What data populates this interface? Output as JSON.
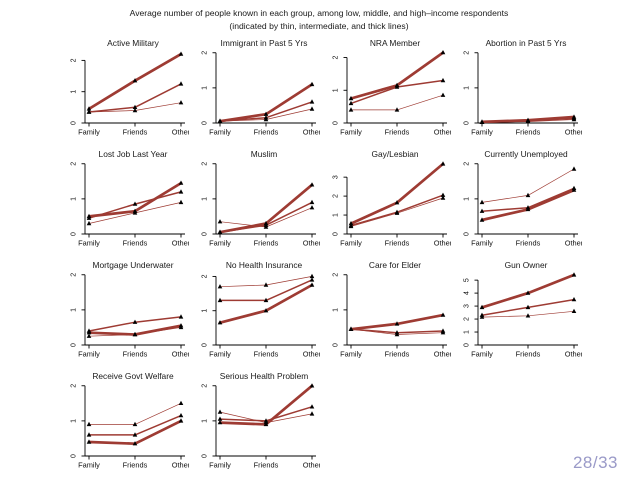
{
  "slide": {
    "title_line1": "Average number of people known in each group, among low, middle, and high–income respondents",
    "title_line2": "(indicated by thin, intermediate, and thick lines)",
    "page_number": "28/33"
  },
  "colors": {
    "line": "#9e3b33",
    "marker": "#000000",
    "axis": "#000000",
    "page_number": "#9a9ac8"
  },
  "legend_note": "thin = low income, intermediate = middle income, thick = high income",
  "chart_data": [
    {
      "type": "line",
      "title": "Active Military",
      "categories": [
        "Family",
        "Friends",
        "Other"
      ],
      "yticks": [
        0,
        1,
        2
      ],
      "ylim": [
        0,
        2.3
      ],
      "series": [
        {
          "name": "low income (thin)",
          "values": [
            0.35,
            0.4,
            0.65
          ]
        },
        {
          "name": "middle income (intermediate)",
          "values": [
            0.35,
            0.5,
            1.25
          ]
        },
        {
          "name": "high income (thick)",
          "values": [
            0.45,
            1.35,
            2.2
          ]
        }
      ]
    },
    {
      "type": "line",
      "title": "Immigrant in Past 5 Yrs",
      "categories": [
        "Family",
        "Friends",
        "Other"
      ],
      "yticks": [
        0,
        1,
        2
      ],
      "ylim": [
        0,
        2.05
      ],
      "series": [
        {
          "name": "low income (thin)",
          "values": [
            0.05,
            0.1,
            0.4
          ]
        },
        {
          "name": "middle income (intermediate)",
          "values": [
            0.05,
            0.15,
            0.6
          ]
        },
        {
          "name": "high income (thick)",
          "values": [
            0.05,
            0.25,
            1.1
          ]
        }
      ]
    },
    {
      "type": "line",
      "title": "NRA Member",
      "categories": [
        "Family",
        "Friends",
        "Other"
      ],
      "yticks": [
        0,
        1,
        2
      ],
      "ylim": [
        0,
        2.2
      ],
      "series": [
        {
          "name": "low income (thin)",
          "values": [
            0.4,
            0.4,
            0.85
          ]
        },
        {
          "name": "middle income (intermediate)",
          "values": [
            0.6,
            1.1,
            1.3
          ]
        },
        {
          "name": "high income (thick)",
          "values": [
            0.75,
            1.15,
            2.15
          ]
        }
      ]
    },
    {
      "type": "line",
      "title": "Abortion in Past 5 Yrs",
      "categories": [
        "Family",
        "Friends",
        "Other"
      ],
      "yticks": [
        0,
        1,
        2
      ],
      "ylim": [
        0,
        2.05
      ],
      "series": [
        {
          "name": "low income (thin)",
          "values": [
            0.02,
            0.04,
            0.1
          ]
        },
        {
          "name": "middle income (intermediate)",
          "values": [
            0.02,
            0.06,
            0.13
          ]
        },
        {
          "name": "high income (thick)",
          "values": [
            0.03,
            0.08,
            0.17
          ]
        }
      ]
    },
    {
      "type": "line",
      "title": "Lost Job Last Year",
      "categories": [
        "Family",
        "Friends",
        "Other"
      ],
      "yticks": [
        0,
        1,
        2
      ],
      "ylim": [
        0,
        2.05
      ],
      "series": [
        {
          "name": "low income (thin)",
          "values": [
            0.3,
            0.6,
            0.9
          ]
        },
        {
          "name": "middle income (intermediate)",
          "values": [
            0.45,
            0.85,
            1.2
          ]
        },
        {
          "name": "high income (thick)",
          "values": [
            0.5,
            0.65,
            1.45
          ]
        }
      ]
    },
    {
      "type": "line",
      "title": "Muslim",
      "categories": [
        "Family",
        "Friends",
        "Other"
      ],
      "yticks": [
        0,
        1,
        2
      ],
      "ylim": [
        0,
        2.05
      ],
      "series": [
        {
          "name": "low income (thin)",
          "values": [
            0.35,
            0.2,
            0.75
          ]
        },
        {
          "name": "middle income (intermediate)",
          "values": [
            0.05,
            0.25,
            0.9
          ]
        },
        {
          "name": "high income (thick)",
          "values": [
            0.05,
            0.3,
            1.4
          ]
        }
      ]
    },
    {
      "type": "line",
      "title": "Gay/Lesbian",
      "categories": [
        "Family",
        "Friends",
        "Other"
      ],
      "yticks": [
        0,
        1,
        2,
        3
      ],
      "ylim": [
        0,
        3.8
      ],
      "series": [
        {
          "name": "low income (thin)",
          "values": [
            0.4,
            1.1,
            1.9
          ]
        },
        {
          "name": "middle income (intermediate)",
          "values": [
            0.45,
            1.15,
            2.05
          ]
        },
        {
          "name": "high income (thick)",
          "values": [
            0.55,
            1.65,
            3.7
          ]
        }
      ]
    },
    {
      "type": "line",
      "title": "Currently Unemployed",
      "categories": [
        "Family",
        "Friends",
        "Other"
      ],
      "yticks": [
        0,
        1,
        2
      ],
      "ylim": [
        0,
        2.05
      ],
      "series": [
        {
          "name": "low income (thin)",
          "values": [
            0.9,
            1.1,
            1.85
          ]
        },
        {
          "name": "middle income (intermediate)",
          "values": [
            0.65,
            0.75,
            1.3
          ]
        },
        {
          "name": "high income (thick)",
          "values": [
            0.4,
            0.7,
            1.25
          ]
        }
      ]
    },
    {
      "type": "line",
      "title": "Mortgage Underwater",
      "categories": [
        "Family",
        "Friends",
        "Other"
      ],
      "yticks": [
        0,
        1,
        2
      ],
      "ylim": [
        0,
        2.05
      ],
      "series": [
        {
          "name": "low income (thin)",
          "values": [
            0.25,
            0.3,
            0.5
          ]
        },
        {
          "name": "middle income (intermediate)",
          "values": [
            0.4,
            0.65,
            0.8
          ]
        },
        {
          "name": "high income (thick)",
          "values": [
            0.35,
            0.3,
            0.55
          ]
        }
      ]
    },
    {
      "type": "line",
      "title": "No Health Insurance",
      "categories": [
        "Family",
        "Friends",
        "Other"
      ],
      "yticks": [
        0,
        1,
        2
      ],
      "ylim": [
        0,
        2.1
      ],
      "series": [
        {
          "name": "low income (thin)",
          "values": [
            1.7,
            1.75,
            2.0
          ]
        },
        {
          "name": "middle income (intermediate)",
          "values": [
            1.3,
            1.3,
            1.9
          ]
        },
        {
          "name": "high income (thick)",
          "values": [
            0.65,
            1.0,
            1.75
          ]
        }
      ]
    },
    {
      "type": "line",
      "title": "Care for Elder",
      "categories": [
        "Family",
        "Friends",
        "Other"
      ],
      "yticks": [
        0,
        1,
        2
      ],
      "ylim": [
        0,
        2.05
      ],
      "series": [
        {
          "name": "low income (thin)",
          "values": [
            0.45,
            0.3,
            0.35
          ]
        },
        {
          "name": "middle income (intermediate)",
          "values": [
            0.45,
            0.35,
            0.4
          ]
        },
        {
          "name": "high income (thick)",
          "values": [
            0.45,
            0.6,
            0.85
          ]
        }
      ]
    },
    {
      "type": "line",
      "title": "Gun Owner",
      "categories": [
        "Family",
        "Friends",
        "Other"
      ],
      "yticks": [
        0,
        1,
        2,
        3,
        4,
        5
      ],
      "ylim": [
        0,
        5.55
      ],
      "series": [
        {
          "name": "low income (thin)",
          "values": [
            2.15,
            2.25,
            2.6
          ]
        },
        {
          "name": "middle income (intermediate)",
          "values": [
            2.3,
            2.9,
            3.5
          ]
        },
        {
          "name": "high income (thick)",
          "values": [
            2.9,
            4.0,
            5.4
          ]
        }
      ]
    },
    {
      "type": "line",
      "title": "Receive Govt Welfare",
      "categories": [
        "Family",
        "Friends",
        "Other"
      ],
      "yticks": [
        0,
        1,
        2
      ],
      "ylim": [
        0,
        2.05
      ],
      "series": [
        {
          "name": "low income (thin)",
          "values": [
            0.9,
            0.9,
            1.5
          ]
        },
        {
          "name": "middle income (intermediate)",
          "values": [
            0.6,
            0.6,
            1.15
          ]
        },
        {
          "name": "high income (thick)",
          "values": [
            0.4,
            0.35,
            1.0
          ]
        }
      ]
    },
    {
      "type": "line",
      "title": "Serious Health Problem",
      "categories": [
        "Family",
        "Friends",
        "Other"
      ],
      "yticks": [
        0,
        1,
        2
      ],
      "ylim": [
        0,
        2.05
      ],
      "series": [
        {
          "name": "low income (thin)",
          "values": [
            1.25,
            0.95,
            1.2
          ]
        },
        {
          "name": "middle income (intermediate)",
          "values": [
            1.05,
            1.0,
            1.4
          ]
        },
        {
          "name": "high income (thick)",
          "values": [
            0.95,
            0.9,
            2.0
          ]
        }
      ]
    }
  ]
}
